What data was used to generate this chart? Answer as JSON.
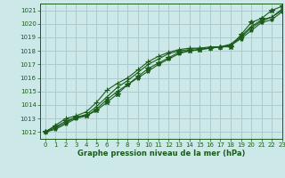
{
  "background_color": "#cce8e8",
  "grid_color": "#aacccc",
  "line_color": "#1a5c1a",
  "marker_color": "#1a5c1a",
  "xlabel": "Graphe pression niveau de la mer (hPa)",
  "xlabel_color": "#1a5c1a",
  "xlim": [
    -0.5,
    23
  ],
  "ylim": [
    1011.5,
    1021.5
  ],
  "yticks": [
    1012,
    1013,
    1014,
    1015,
    1016,
    1017,
    1018,
    1019,
    1020,
    1021
  ],
  "xticks": [
    0,
    1,
    2,
    3,
    4,
    5,
    6,
    7,
    8,
    9,
    10,
    11,
    12,
    13,
    14,
    15,
    16,
    17,
    18,
    19,
    20,
    21,
    22,
    23
  ],
  "series": [
    [
      1012.0,
      1012.4,
      1012.8,
      1013.1,
      1013.2,
      1013.6,
      1014.2,
      1014.8,
      1015.5,
      1016.1,
      1016.7,
      1017.1,
      1017.5,
      1017.9,
      1018.0,
      1018.1,
      1018.2,
      1018.3,
      1018.3,
      1019.2,
      1020.1,
      1020.4,
      1021.0,
      1021.3
    ],
    [
      1012.0,
      1012.5,
      1013.0,
      1013.2,
      1013.5,
      1014.2,
      1015.1,
      1015.6,
      1016.0,
      1016.6,
      1017.2,
      1017.6,
      1017.9,
      1018.1,
      1018.2,
      1018.2,
      1018.2,
      1018.3,
      1018.4,
      1019.0,
      1019.7,
      1020.2,
      1020.5,
      1021.0
    ],
    [
      1012.0,
      1012.2,
      1012.6,
      1013.0,
      1013.2,
      1013.7,
      1014.4,
      1015.0,
      1015.5,
      1016.0,
      1016.5,
      1017.0,
      1017.4,
      1017.8,
      1018.0,
      1018.1,
      1018.2,
      1018.3,
      1018.4,
      1018.9,
      1019.5,
      1020.1,
      1020.3,
      1020.9
    ],
    [
      1012.0,
      1012.3,
      1012.7,
      1013.1,
      1013.3,
      1013.9,
      1014.6,
      1015.3,
      1015.8,
      1016.4,
      1017.0,
      1017.4,
      1017.8,
      1018.0,
      1018.1,
      1018.2,
      1018.3,
      1018.3,
      1018.5,
      1019.1,
      1019.8,
      1020.3,
      1020.5,
      1021.1
    ]
  ]
}
